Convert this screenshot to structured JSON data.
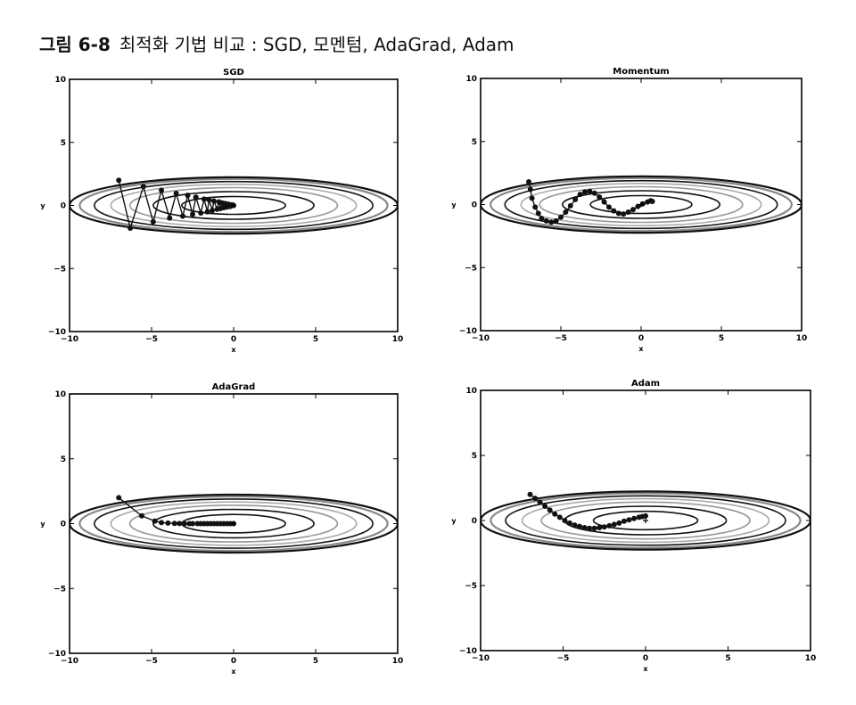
{
  "figure": {
    "label": "그림 6-8",
    "caption": "최적화 기법 비교 : SGD, 모멘텀, AdaGrad, Adam"
  },
  "chart_data": [
    {
      "type": "line",
      "title": "SGD",
      "xlabel": "x",
      "ylabel": "y",
      "xlim": [
        -10,
        10
      ],
      "ylim": [
        -10,
        10
      ],
      "xticks": [
        -10,
        -5,
        0,
        5,
        10
      ],
      "yticks": [
        -10,
        -5,
        0,
        5,
        10
      ],
      "contour_function": "x^2/20 + y^2",
      "contour_levels": [
        0.5,
        1.2,
        2.0,
        2.8,
        3.6,
        4.4,
        5.0
      ],
      "series": [
        {
          "x": [
            -7.0,
            -6.3,
            -5.5,
            -4.9,
            -4.4,
            -3.9,
            -3.5,
            -3.1,
            -2.8,
            -2.5,
            -2.3,
            -2.0,
            -1.8,
            -1.6,
            -1.5,
            -1.3,
            -1.2,
            -1.0,
            -0.9,
            -0.8,
            -0.7,
            -0.6,
            -0.5,
            -0.4,
            -0.3,
            -0.2,
            -0.1,
            0.0
          ],
          "y": [
            2.0,
            -1.8,
            1.5,
            -1.3,
            1.2,
            -1.0,
            0.95,
            -0.85,
            0.8,
            -0.7,
            0.65,
            -0.6,
            0.5,
            -0.5,
            0.45,
            -0.4,
            0.35,
            -0.3,
            0.28,
            -0.25,
            0.2,
            -0.18,
            0.15,
            -0.12,
            0.1,
            -0.08,
            0.05,
            0.0
          ]
        }
      ]
    },
    {
      "type": "line",
      "title": "Momentum",
      "xlabel": "x",
      "ylabel": "y",
      "xlim": [
        -10,
        10
      ],
      "ylim": [
        -10,
        10
      ],
      "xticks": [
        -10,
        -5,
        0,
        5,
        10
      ],
      "yticks": [
        -10,
        -5,
        0,
        5,
        10
      ],
      "contour_function": "x^2/20 + y^2",
      "contour_levels": [
        0.5,
        1.2,
        2.0,
        2.8,
        3.6,
        4.4,
        5.0
      ],
      "series": [
        {
          "x": [
            -7.0,
            -6.9,
            -6.8,
            -6.6,
            -6.4,
            -6.2,
            -5.9,
            -5.6,
            -5.3,
            -5.0,
            -4.7,
            -4.4,
            -4.1,
            -3.8,
            -3.5,
            -3.2,
            -2.9,
            -2.6,
            -2.3,
            -2.0,
            -1.7,
            -1.4,
            -1.1,
            -0.8,
            -0.5,
            -0.2,
            0.1,
            0.4,
            0.6,
            0.7
          ],
          "y": [
            1.8,
            1.2,
            0.5,
            -0.2,
            -0.7,
            -1.1,
            -1.3,
            -1.4,
            -1.3,
            -1.0,
            -0.6,
            -0.1,
            0.4,
            0.8,
            1.0,
            1.05,
            0.9,
            0.6,
            0.2,
            -0.2,
            -0.5,
            -0.7,
            -0.75,
            -0.6,
            -0.4,
            -0.15,
            0.05,
            0.2,
            0.3,
            0.25
          ]
        }
      ]
    },
    {
      "type": "line",
      "title": "AdaGrad",
      "xlabel": "x",
      "ylabel": "y",
      "xlim": [
        -10,
        10
      ],
      "ylim": [
        -10,
        10
      ],
      "xticks": [
        -10,
        -5,
        0,
        5,
        10
      ],
      "yticks": [
        -10,
        -5,
        0,
        5,
        10
      ],
      "contour_function": "x^2/20 + y^2",
      "contour_levels": [
        0.5,
        1.2,
        2.0,
        2.8,
        3.6,
        4.4,
        5.0
      ],
      "series": [
        {
          "x": [
            -7.0,
            -5.6,
            -4.8,
            -4.4,
            -4.0,
            -3.6,
            -3.3,
            -3.0,
            -2.7,
            -2.5,
            -2.2,
            -2.0,
            -1.8,
            -1.6,
            -1.4,
            -1.2,
            -1.0,
            -0.8,
            -0.6,
            -0.4,
            -0.2,
            0.0
          ],
          "y": [
            2.0,
            0.6,
            0.2,
            0.08,
            0.04,
            0.02,
            0.01,
            0.0,
            0.0,
            0.0,
            0.0,
            0.0,
            0.0,
            0.0,
            0.0,
            0.0,
            0.0,
            0.0,
            0.0,
            0.0,
            0.0,
            0.0
          ]
        }
      ]
    },
    {
      "type": "line",
      "title": "Adam",
      "xlabel": "x",
      "ylabel": "y",
      "xlim": [
        -10,
        10
      ],
      "ylim": [
        -10,
        10
      ],
      "xticks": [
        -10,
        -5,
        0,
        5,
        10
      ],
      "yticks": [
        -10,
        -5,
        0,
        5,
        10
      ],
      "contour_function": "x^2/20 + y^2",
      "contour_levels": [
        0.5,
        1.2,
        2.0,
        2.8,
        3.6,
        4.4,
        5.0
      ],
      "series": [
        {
          "x": [
            -7.0,
            -6.7,
            -6.4,
            -6.1,
            -5.8,
            -5.5,
            -5.2,
            -4.9,
            -4.6,
            -4.3,
            -4.0,
            -3.7,
            -3.4,
            -3.1,
            -2.8,
            -2.5,
            -2.2,
            -1.9,
            -1.6,
            -1.3,
            -1.0,
            -0.7,
            -0.4,
            -0.2,
            0.0
          ],
          "y": [
            2.0,
            1.7,
            1.4,
            1.1,
            0.8,
            0.5,
            0.25,
            0.0,
            -0.2,
            -0.35,
            -0.45,
            -0.55,
            -0.6,
            -0.6,
            -0.55,
            -0.5,
            -0.4,
            -0.3,
            -0.2,
            -0.05,
            0.05,
            0.15,
            0.25,
            0.3,
            0.35
          ]
        }
      ]
    }
  ]
}
